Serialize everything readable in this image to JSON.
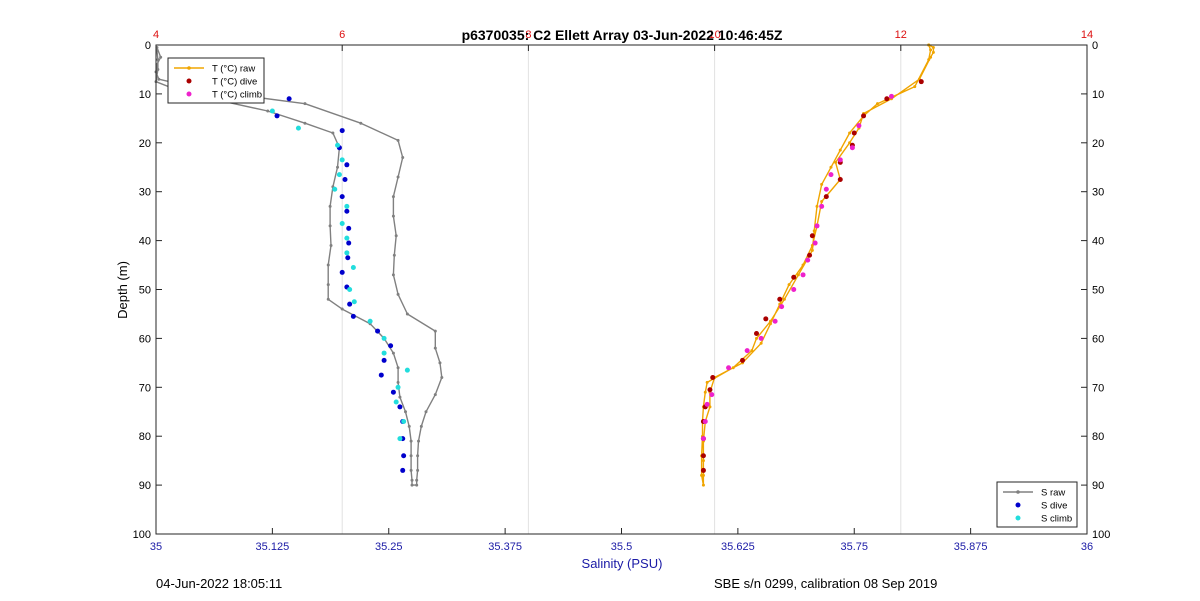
{
  "chart_data": {
    "type": "line",
    "title": "p6370035: C2 Ellett Array 03-Jun-2022 10:46:45Z",
    "xlabel": "Salinity (PSU)",
    "ylabel": "Depth (m)",
    "x_bottom": {
      "lim": [
        35,
        36
      ],
      "ticks": [
        35,
        35.125,
        35.25,
        35.375,
        35.5,
        35.625,
        35.75,
        35.875,
        36
      ],
      "ticklabels": [
        "35",
        "35.125",
        "35.25",
        "35.375",
        "35.5",
        "35.625",
        "35.75",
        "35.875",
        "36"
      ],
      "color": "#1a1aa6"
    },
    "x_top": {
      "lim": [
        4,
        14
      ],
      "ticks": [
        4,
        6,
        8,
        10,
        12,
        14
      ],
      "ticklabels": [
        "4",
        "6",
        "8",
        "10",
        "12",
        "14"
      ],
      "color": "#dd1111",
      "grid": true
    },
    "y": {
      "lim": [
        0,
        100
      ],
      "reversed": true,
      "ticks": [
        0,
        10,
        20,
        30,
        40,
        50,
        60,
        70,
        80,
        90,
        100
      ],
      "ticklabels": [
        "0",
        "10",
        "20",
        "30",
        "40",
        "50",
        "60",
        "70",
        "80",
        "90",
        "100"
      ]
    },
    "legend_temperature": {
      "placement": "top-left",
      "entries": [
        {
          "label": "T (°C) raw",
          "color": "#f0a500",
          "style": "line"
        },
        {
          "label": "T (°C) dive",
          "color": "#aa0000",
          "style": "dot"
        },
        {
          "label": "T (°C) climb",
          "color": "#ee22cc",
          "style": "dot"
        }
      ]
    },
    "legend_salinity": {
      "placement": "bottom-right",
      "entries": [
        {
          "label": "S raw",
          "color": "#808080",
          "style": "line"
        },
        {
          "label": "S dive",
          "color": "#0000cc",
          "style": "dot"
        },
        {
          "label": "S climb",
          "color": "#22dddd",
          "style": "dot"
        }
      ]
    },
    "series": [
      {
        "name": "S raw",
        "axis": "salinity",
        "color": "#808080",
        "kind": "line",
        "points": [
          [
            35.001,
            0.5
          ],
          [
            35.005,
            2.5
          ],
          [
            35.001,
            4
          ],
          [
            35.0,
            5.5
          ],
          [
            35.003,
            7
          ],
          [
            35.06,
            9.5
          ],
          [
            35.16,
            12
          ],
          [
            35.22,
            16
          ],
          [
            35.26,
            19.5
          ],
          [
            35.265,
            23
          ],
          [
            35.26,
            27
          ],
          [
            35.255,
            31
          ],
          [
            35.255,
            35
          ],
          [
            35.258,
            39
          ],
          [
            35.256,
            43
          ],
          [
            35.255,
            47
          ],
          [
            35.26,
            51
          ],
          [
            35.27,
            55
          ],
          [
            35.3,
            58.5
          ],
          [
            35.3,
            62
          ],
          [
            35.305,
            65
          ],
          [
            35.307,
            68
          ],
          [
            35.3,
            71.5
          ],
          [
            35.29,
            75
          ],
          [
            35.285,
            78
          ],
          [
            35.282,
            81
          ],
          [
            35.281,
            84
          ],
          [
            35.281,
            87
          ],
          [
            35.28,
            89
          ],
          [
            35.28,
            90
          ],
          [
            35.275,
            90
          ],
          [
            35.275,
            89
          ],
          [
            35.274,
            87
          ],
          [
            35.274,
            84
          ],
          [
            35.274,
            81
          ],
          [
            35.272,
            78
          ],
          [
            35.268,
            75
          ],
          [
            35.262,
            72
          ],
          [
            35.26,
            69
          ],
          [
            35.26,
            66
          ],
          [
            35.255,
            63
          ],
          [
            35.245,
            60
          ],
          [
            35.23,
            57
          ],
          [
            35.2,
            54
          ],
          [
            35.185,
            52
          ],
          [
            35.185,
            49
          ],
          [
            35.185,
            45
          ],
          [
            35.188,
            41
          ],
          [
            35.187,
            37
          ],
          [
            35.187,
            33
          ],
          [
            35.19,
            29
          ],
          [
            35.195,
            25
          ],
          [
            35.197,
            21
          ],
          [
            35.19,
            18
          ],
          [
            35.16,
            16
          ],
          [
            35.12,
            13.5
          ],
          [
            35.06,
            11
          ],
          [
            35.02,
            9
          ],
          [
            35.0,
            7.5
          ],
          [
            35.002,
            5
          ],
          [
            35.002,
            3
          ],
          [
            35.001,
            1
          ]
        ]
      },
      {
        "name": "S dive",
        "axis": "salinity",
        "color": "#0000cc",
        "kind": "dot",
        "points": [
          [
            35.143,
            11
          ],
          [
            35.13,
            14.5
          ],
          [
            35.2,
            17.5
          ],
          [
            35.197,
            21
          ],
          [
            35.205,
            24.5
          ],
          [
            35.203,
            27.5
          ],
          [
            35.2,
            31
          ],
          [
            35.205,
            34
          ],
          [
            35.207,
            37.5
          ],
          [
            35.207,
            40.5
          ],
          [
            35.206,
            43.5
          ],
          [
            35.2,
            46.5
          ],
          [
            35.205,
            49.5
          ],
          [
            35.208,
            53
          ],
          [
            35.212,
            55.5
          ],
          [
            35.238,
            58.5
          ],
          [
            35.252,
            61.5
          ],
          [
            35.245,
            64.5
          ],
          [
            35.242,
            67.5
          ],
          [
            35.255,
            71
          ],
          [
            35.262,
            74
          ],
          [
            35.265,
            77
          ],
          [
            35.265,
            80.5
          ],
          [
            35.266,
            84
          ],
          [
            35.265,
            87
          ]
        ]
      },
      {
        "name": "S climb",
        "axis": "salinity",
        "color": "#22dddd",
        "kind": "dot",
        "points": [
          [
            35.07,
            7
          ],
          [
            35.125,
            13.5
          ],
          [
            35.153,
            17
          ],
          [
            35.195,
            20.5
          ],
          [
            35.2,
            23.5
          ],
          [
            35.197,
            26.5
          ],
          [
            35.192,
            29.5
          ],
          [
            35.205,
            33
          ],
          [
            35.2,
            36.5
          ],
          [
            35.205,
            39.5
          ],
          [
            35.205,
            42.5
          ],
          [
            35.212,
            45.5
          ],
          [
            35.208,
            50
          ],
          [
            35.213,
            52.5
          ],
          [
            35.23,
            56.5
          ],
          [
            35.245,
            60
          ],
          [
            35.245,
            63
          ],
          [
            35.27,
            66.5
          ],
          [
            35.26,
            70
          ],
          [
            35.258,
            73
          ],
          [
            35.266,
            77
          ],
          [
            35.262,
            80.5
          ]
        ]
      },
      {
        "name": "T (°C) raw",
        "axis": "temperature",
        "color": "#f0a500",
        "kind": "line",
        "points": [
          [
            12.3,
            0
          ],
          [
            12.35,
            0.5
          ],
          [
            12.35,
            1.5
          ],
          [
            12.32,
            2.5
          ],
          [
            12.2,
            7
          ],
          [
            11.9,
            11
          ],
          [
            11.6,
            14
          ],
          [
            11.55,
            17
          ],
          [
            11.45,
            20
          ],
          [
            11.3,
            24
          ],
          [
            11.35,
            27.5
          ],
          [
            11.15,
            32
          ],
          [
            11.1,
            37
          ],
          [
            11.05,
            41
          ],
          [
            10.95,
            45
          ],
          [
            10.8,
            49
          ],
          [
            10.7,
            53
          ],
          [
            10.6,
            57
          ],
          [
            10.5,
            61
          ],
          [
            10.3,
            65
          ],
          [
            10.0,
            68
          ],
          [
            9.95,
            71
          ],
          [
            9.95,
            74
          ],
          [
            9.9,
            77
          ],
          [
            9.88,
            81
          ],
          [
            9.88,
            85
          ],
          [
            9.88,
            88
          ],
          [
            9.88,
            90
          ],
          [
            9.86,
            88
          ],
          [
            9.86,
            84
          ],
          [
            9.87,
            80
          ],
          [
            9.87,
            77
          ],
          [
            9.88,
            74
          ],
          [
            9.9,
            71
          ],
          [
            9.92,
            69
          ],
          [
            10.2,
            66
          ],
          [
            10.4,
            62.5
          ],
          [
            10.45,
            60
          ],
          [
            10.6,
            56.5
          ],
          [
            10.75,
            52
          ],
          [
            10.9,
            47
          ],
          [
            11.05,
            42
          ],
          [
            11.07,
            38
          ],
          [
            11.1,
            33
          ],
          [
            11.15,
            28.5
          ],
          [
            11.25,
            25
          ],
          [
            11.35,
            21.5
          ],
          [
            11.45,
            18
          ],
          [
            11.6,
            14.5
          ],
          [
            11.75,
            12
          ],
          [
            12.15,
            8.5
          ],
          [
            12.3,
            3
          ],
          [
            12.32,
            1
          ],
          [
            12.3,
            0
          ]
        ]
      },
      {
        "name": "T (°C) dive",
        "axis": "temperature",
        "color": "#aa0000",
        "kind": "dot",
        "points": [
          [
            12.22,
            7.5
          ],
          [
            11.85,
            11
          ],
          [
            11.6,
            14.5
          ],
          [
            11.5,
            18
          ],
          [
            11.48,
            20.5
          ],
          [
            11.35,
            24
          ],
          [
            11.35,
            27.5
          ],
          [
            11.2,
            31
          ],
          [
            11.05,
            39
          ],
          [
            11.02,
            43
          ],
          [
            10.85,
            47.5
          ],
          [
            10.7,
            52
          ],
          [
            10.55,
            56
          ],
          [
            10.45,
            59
          ],
          [
            10.3,
            64.5
          ],
          [
            9.98,
            68
          ],
          [
            9.95,
            70.5
          ],
          [
            9.9,
            74
          ],
          [
            9.88,
            77
          ],
          [
            9.88,
            80.5
          ],
          [
            9.88,
            84
          ],
          [
            9.88,
            87
          ]
        ]
      },
      {
        "name": "T (°C) climb",
        "axis": "temperature",
        "color": "#ee22cc",
        "kind": "dot",
        "points": [
          [
            11.9,
            10.5
          ],
          [
            11.55,
            16.5
          ],
          [
            11.48,
            21
          ],
          [
            11.35,
            23.5
          ],
          [
            11.25,
            26.5
          ],
          [
            11.2,
            29.5
          ],
          [
            11.15,
            33
          ],
          [
            11.1,
            37
          ],
          [
            11.08,
            40.5
          ],
          [
            11.0,
            44
          ],
          [
            10.95,
            47
          ],
          [
            10.85,
            50
          ],
          [
            10.72,
            53.5
          ],
          [
            10.65,
            56.5
          ],
          [
            10.5,
            60
          ],
          [
            10.35,
            62.5
          ],
          [
            10.15,
            66
          ],
          [
            9.97,
            71.5
          ],
          [
            9.92,
            73.5
          ],
          [
            9.9,
            77
          ],
          [
            9.88,
            80.5
          ]
        ]
      }
    ]
  },
  "footer": {
    "left": "04-Jun-2022 18:05:11",
    "right": "SBE s/n 0299, calibration 08 Sep 2019"
  }
}
